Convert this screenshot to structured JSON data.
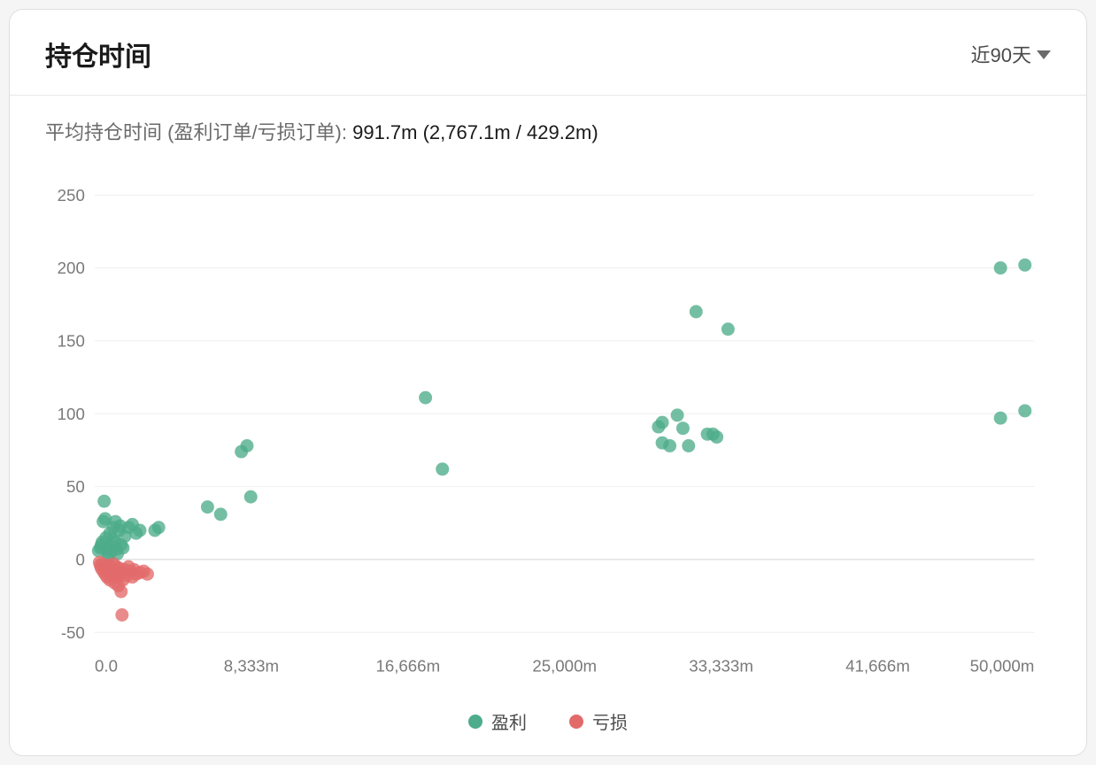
{
  "header": {
    "title": "持仓时间",
    "time_selector_label": "近90天"
  },
  "summary": {
    "label": "平均持仓时间 (盈利订单/亏损订单): ",
    "values": "991.7m (2,767.1m / 429.2m)"
  },
  "chart": {
    "type": "scatter",
    "background_color": "#ffffff",
    "grid_color": "#eeeeee",
    "axis_line_color": "#cccccc",
    "label_color": "#7a7a7a",
    "label_fontsize": 20,
    "marker_radius": 8,
    "marker_opacity": 0.78,
    "xlim": [
      0,
      50000
    ],
    "ylim": [
      -60,
      260
    ],
    "y_ticks": [
      -50,
      0,
      50,
      100,
      150,
      200,
      250
    ],
    "y_tick_labels": [
      "-50",
      "0",
      "50",
      "100",
      "150",
      "200",
      "250"
    ],
    "x_ticks": [
      0,
      8333,
      16666,
      25000,
      33333,
      41666,
      50000
    ],
    "x_tick_labels": [
      "0.0",
      "8,333m",
      "16,666m",
      "25,000m",
      "33,333m",
      "41,666m",
      "50,000m"
    ],
    "series": [
      {
        "name": "盈利",
        "color": "#4dac8b",
        "points": [
          [
            200,
            6
          ],
          [
            300,
            8
          ],
          [
            350,
            10
          ],
          [
            400,
            12
          ],
          [
            450,
            26
          ],
          [
            500,
            40
          ],
          [
            550,
            28
          ],
          [
            600,
            15
          ],
          [
            650,
            7
          ],
          [
            700,
            4
          ],
          [
            750,
            2
          ],
          [
            800,
            18
          ],
          [
            850,
            9
          ],
          [
            900,
            6
          ],
          [
            950,
            14
          ],
          [
            1000,
            22
          ],
          [
            1050,
            12
          ],
          [
            1100,
            26
          ],
          [
            1150,
            7
          ],
          [
            1200,
            4
          ],
          [
            1300,
            20
          ],
          [
            1350,
            23
          ],
          [
            1400,
            10
          ],
          [
            1500,
            8
          ],
          [
            1600,
            16
          ],
          [
            1800,
            22
          ],
          [
            2000,
            24
          ],
          [
            2200,
            18
          ],
          [
            2400,
            20
          ],
          [
            3200,
            20
          ],
          [
            3400,
            22
          ],
          [
            6000,
            36
          ],
          [
            6700,
            31
          ],
          [
            7800,
            74
          ],
          [
            8100,
            78
          ],
          [
            8300,
            43
          ],
          [
            17600,
            111
          ],
          [
            18500,
            62
          ],
          [
            30000,
            91
          ],
          [
            30200,
            94
          ],
          [
            30200,
            80
          ],
          [
            30600,
            78
          ],
          [
            31000,
            99
          ],
          [
            31300,
            90
          ],
          [
            31600,
            78
          ],
          [
            32000,
            170
          ],
          [
            32600,
            86
          ],
          [
            32900,
            86
          ],
          [
            33100,
            84
          ],
          [
            33700,
            158
          ],
          [
            48200,
            200
          ],
          [
            48200,
            97
          ],
          [
            49500,
            202
          ],
          [
            49500,
            102
          ]
        ]
      },
      {
        "name": "亏损",
        "color": "#e36a6a",
        "points": [
          [
            250,
            -2
          ],
          [
            300,
            -4
          ],
          [
            350,
            -6
          ],
          [
            400,
            -3
          ],
          [
            450,
            -8
          ],
          [
            500,
            -5
          ],
          [
            550,
            -10
          ],
          [
            600,
            -7
          ],
          [
            650,
            -12
          ],
          [
            700,
            -6
          ],
          [
            750,
            -4
          ],
          [
            800,
            -14
          ],
          [
            850,
            -9
          ],
          [
            900,
            -11
          ],
          [
            950,
            -7
          ],
          [
            1000,
            -3
          ],
          [
            1050,
            -16
          ],
          [
            1100,
            -8
          ],
          [
            1150,
            -5
          ],
          [
            1200,
            -12
          ],
          [
            1250,
            -18
          ],
          [
            1300,
            -6
          ],
          [
            1350,
            -10
          ],
          [
            1400,
            -22
          ],
          [
            1450,
            -9
          ],
          [
            1500,
            -14
          ],
          [
            1600,
            -7
          ],
          [
            1700,
            -11
          ],
          [
            1800,
            -5
          ],
          [
            1900,
            -8
          ],
          [
            2000,
            -12
          ],
          [
            2100,
            -7
          ],
          [
            2200,
            -10
          ],
          [
            2400,
            -9
          ],
          [
            2600,
            -8
          ],
          [
            2800,
            -10
          ],
          [
            1450,
            -38
          ]
        ]
      }
    ],
    "legend": {
      "profit_label": "盈利",
      "loss_label": "亏损"
    }
  }
}
